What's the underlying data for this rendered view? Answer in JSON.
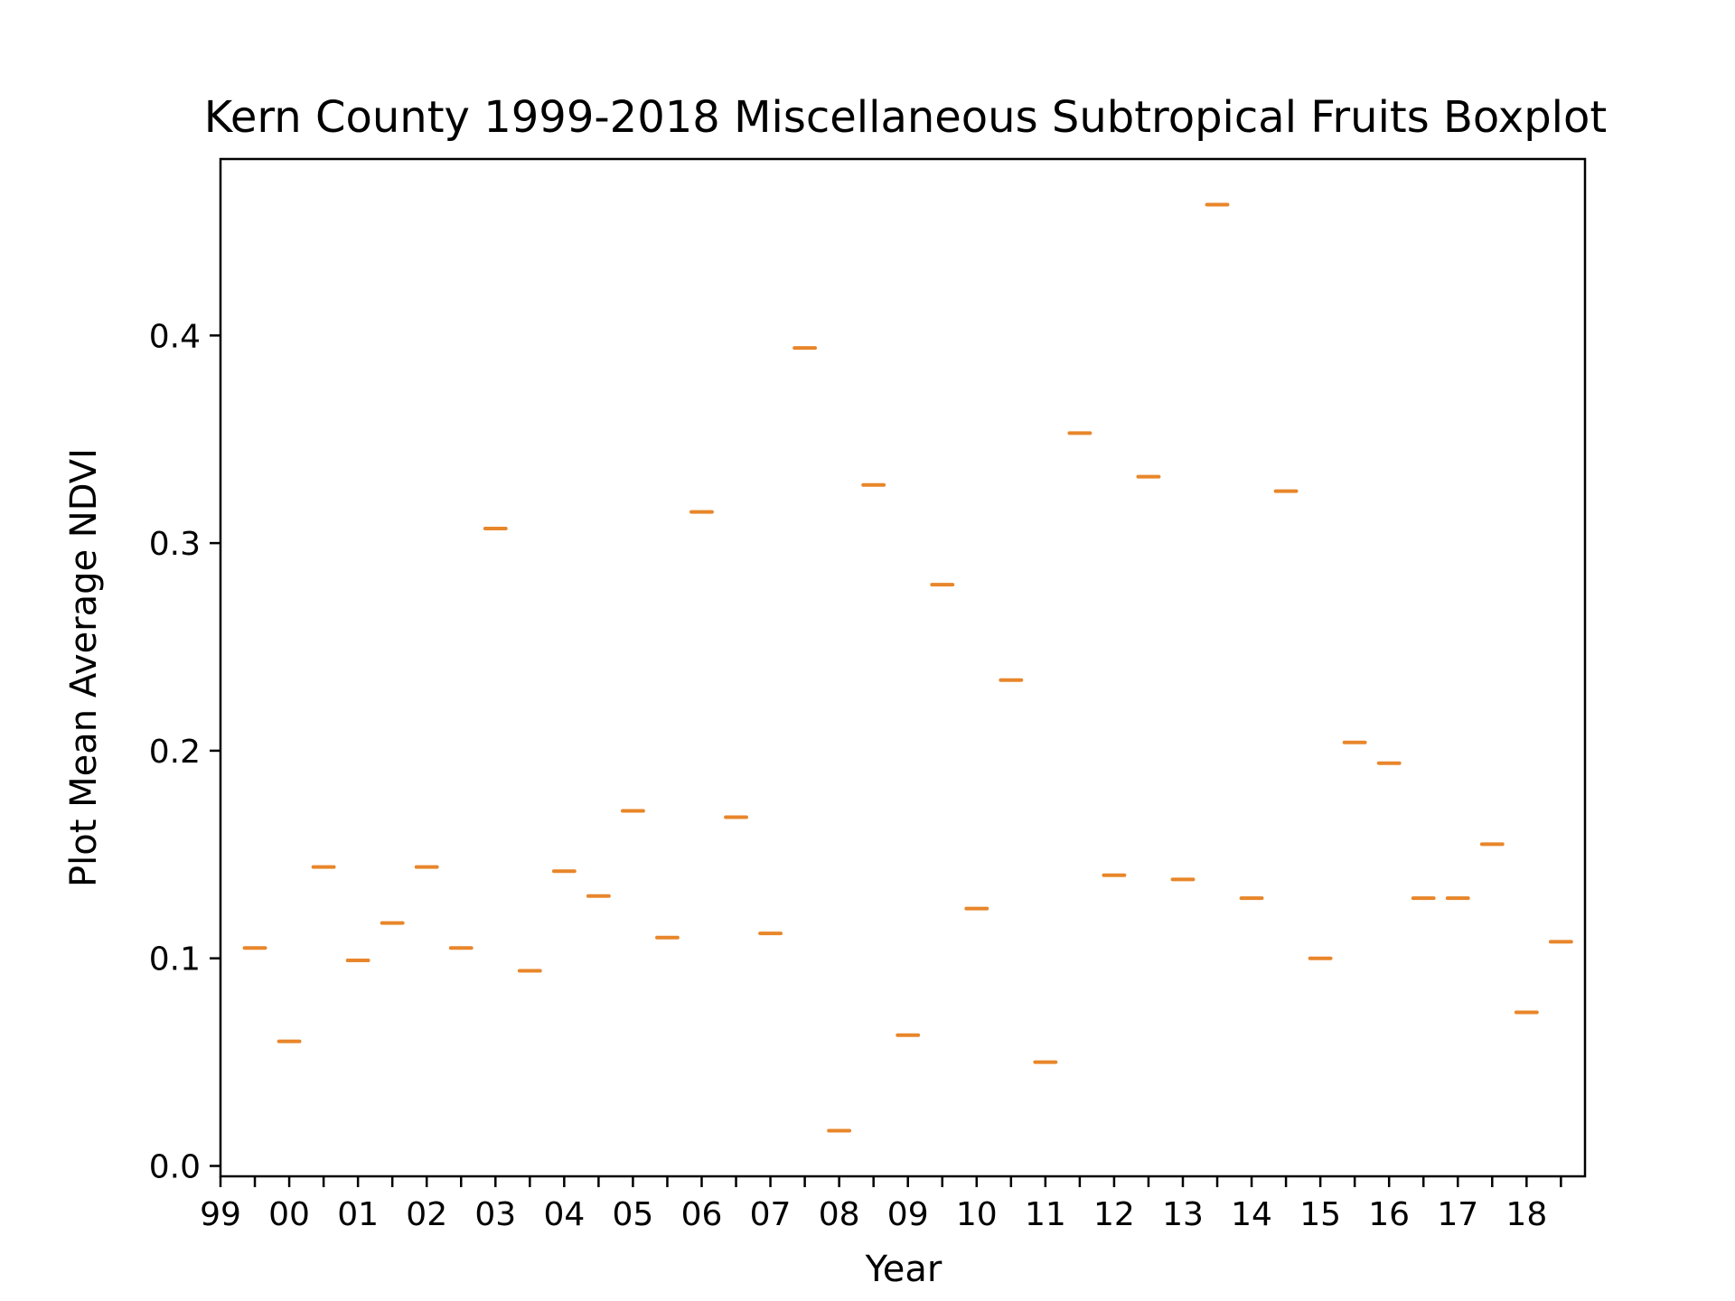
{
  "chart_data": {
    "type": "boxplot",
    "title": "Kern County 1999-2018 Miscellaneous Subtropical Fruits Boxplot",
    "xlabel": "Year",
    "ylabel": "Plot Mean Average NDVI",
    "ylim": [
      -0.005,
      0.485
    ],
    "xlim": [
      0,
      39.7
    ],
    "yticks": [
      0.0,
      0.1,
      0.2,
      0.3,
      0.4
    ],
    "ytick_labels": [
      "0.0",
      "0.1",
      "0.2",
      "0.3",
      "0.4"
    ],
    "xtick_labels": [
      "99",
      "00",
      "01",
      "02",
      "03",
      "04",
      "05",
      "06",
      "07",
      "08",
      "09",
      "10",
      "11",
      "12",
      "13",
      "14",
      "15",
      "16",
      "17",
      "18"
    ],
    "xtick_label_positions": [
      0,
      2,
      4,
      6,
      8,
      10,
      12,
      14,
      16,
      18,
      20,
      22,
      24,
      26,
      28,
      30,
      32,
      34,
      36,
      38
    ],
    "xtick_positions": [
      0,
      1,
      2,
      3,
      4,
      5,
      6,
      7,
      8,
      9,
      10,
      11,
      12,
      13,
      14,
      15,
      16,
      17,
      18,
      19,
      20,
      21,
      22,
      23,
      24,
      25,
      26,
      27,
      28,
      29,
      30,
      31,
      32,
      33,
      34,
      35,
      36,
      37,
      38,
      39
    ],
    "median_color": "#e8862a",
    "grid": false,
    "series": [
      {
        "x": [
          1,
          2,
          3,
          4,
          5,
          6,
          7,
          8,
          9,
          10,
          11,
          12,
          13,
          14,
          15,
          16,
          17,
          18,
          19,
          20,
          21,
          22,
          23,
          24,
          25,
          26,
          27,
          28,
          29,
          30,
          31,
          32,
          33,
          34,
          35,
          36,
          37,
          38,
          39
        ],
        "values": [
          0.105,
          0.06,
          0.144,
          0.099,
          0.117,
          0.144,
          0.105,
          0.307,
          0.094,
          0.142,
          0.13,
          0.171,
          0.11,
          0.315,
          0.168,
          0.112,
          0.394,
          0.017,
          0.328,
          0.063,
          0.28,
          0.124,
          0.234,
          0.05,
          0.353,
          0.14,
          0.332,
          0.138,
          0.463,
          0.129,
          0.325,
          0.1,
          0.204,
          0.194,
          0.129,
          0.129,
          0.155,
          0.074,
          0.108
        ]
      }
    ]
  }
}
